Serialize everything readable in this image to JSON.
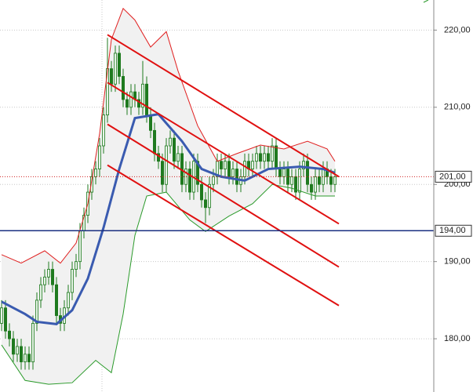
{
  "chart_data": {
    "type": "candlestick",
    "ylim": [
      173.1,
      223.9
    ],
    "xlim": [
      -0.4,
      110.2
    ],
    "yticks": [
      {
        "value": 180,
        "label": "180,00"
      },
      {
        "value": 190,
        "label": "190,00"
      },
      {
        "value": 200,
        "label": "200,00"
      },
      {
        "value": 210,
        "label": "210,00"
      },
      {
        "value": 220,
        "label": "220,00"
      }
    ],
    "grid": true,
    "up_color": "#1f7a1f",
    "down_color": "#1f7a1f",
    "open": [
      182,
      184,
      181,
      180,
      178,
      179,
      177,
      178,
      177,
      182,
      185,
      187,
      188,
      189,
      187,
      183,
      182,
      184,
      186,
      189,
      190,
      194,
      196,
      199,
      201,
      202,
      205,
      209,
      215,
      213,
      217,
      214,
      211,
      210,
      212,
      211,
      210,
      213,
      209,
      207,
      204,
      203,
      200,
      205,
      206,
      203,
      204,
      200,
      202,
      199,
      203,
      200,
      198,
      197,
      200,
      201,
      203,
      202,
      203,
      201,
      202,
      200,
      201,
      203,
      202,
      203,
      204,
      203,
      204,
      203,
      205,
      202,
      201,
      202,
      200,
      201,
      199,
      202,
      203,
      200,
      199,
      201,
      200,
      202,
      201,
      200
    ],
    "high": [
      185,
      185,
      182,
      181,
      180,
      180,
      179,
      179,
      183,
      186,
      188,
      189,
      190,
      190,
      188,
      184,
      185,
      187,
      190,
      191,
      195,
      197,
      200,
      202,
      203,
      206,
      210,
      219,
      216,
      218,
      218,
      215,
      212,
      213,
      213,
      212,
      216,
      214,
      210,
      208,
      205,
      204,
      206,
      207,
      207,
      205,
      205,
      203,
      203,
      204,
      204,
      201,
      199,
      201,
      202,
      204,
      204,
      204,
      204,
      203,
      203,
      202,
      204,
      204,
      204,
      205,
      205,
      205,
      205,
      206,
      206,
      203,
      203,
      203,
      202,
      202,
      203,
      204,
      204,
      201,
      202,
      202,
      203,
      203,
      202,
      202
    ],
    "low": [
      181,
      180,
      179,
      177,
      177,
      176,
      176,
      176,
      176,
      181,
      184,
      186,
      187,
      186,
      182,
      181,
      181,
      183,
      185,
      188,
      189,
      193,
      195,
      198,
      200,
      201,
      204,
      208,
      212,
      212,
      213,
      210,
      209,
      209,
      210,
      209,
      209,
      208,
      206,
      203,
      202,
      199,
      199,
      204,
      202,
      202,
      199,
      199,
      198,
      198,
      199,
      197,
      195,
      196,
      199,
      200,
      201,
      201,
      200,
      200,
      199,
      199,
      200,
      201,
      201,
      202,
      202,
      202,
      202,
      202,
      201,
      200,
      200,
      199,
      199,
      198,
      198,
      201,
      199,
      198,
      198,
      199,
      199,
      200,
      199,
      199
    ],
    "close": [
      184,
      181,
      180,
      178,
      179,
      177,
      178,
      177,
      182,
      185,
      187,
      188,
      189,
      187,
      183,
      182,
      184,
      186,
      189,
      190,
      194,
      196,
      199,
      201,
      202,
      205,
      209,
      215,
      213,
      217,
      214,
      211,
      210,
      212,
      211,
      210,
      213,
      209,
      207,
      204,
      203,
      200,
      205,
      206,
      203,
      204,
      200,
      202,
      199,
      203,
      200,
      198,
      197,
      200,
      201,
      203,
      202,
      203,
      201,
      202,
      200,
      201,
      203,
      202,
      203,
      204,
      203,
      204,
      203,
      205,
      202,
      201,
      202,
      200,
      201,
      199,
      202,
      203,
      200,
      199,
      201,
      200,
      202,
      201,
      200,
      201
    ],
    "bands": [
      {
        "color": "#e02020",
        "x": [
          0,
          5,
          11,
          15,
          19,
          22,
          25,
          28,
          31,
          34,
          38,
          42,
          45,
          50,
          55,
          60,
          66,
          72,
          78,
          83,
          85
        ],
        "values": [
          190.9,
          189.8,
          191.4,
          189.8,
          192.4,
          197.5,
          206.6,
          218.8,
          222.8,
          221.3,
          217.8,
          219.8,
          214.7,
          207.6,
          203,
          204,
          205.1,
          204.6,
          205.6,
          204.6,
          203
        ]
      },
      {
        "color": "#3a5bb0",
        "width": 3,
        "x": [
          0,
          6,
          9,
          14,
          18,
          22,
          26,
          30,
          34,
          40,
          46,
          51,
          56,
          62,
          68,
          76,
          82,
          85
        ],
        "values": [
          184.8,
          183.2,
          182.2,
          181.9,
          183.7,
          187.8,
          194.4,
          202,
          208.6,
          209.1,
          205.6,
          202,
          201,
          200.5,
          202,
          202.3,
          202,
          201.5
        ]
      },
      {
        "color": "#2a9a2a",
        "x": [
          0,
          6,
          12,
          18,
          24,
          28,
          31,
          34,
          37,
          42,
          48,
          52,
          58,
          64,
          69,
          74,
          80,
          85
        ],
        "values": [
          179.2,
          174.6,
          174.1,
          174.3,
          177.2,
          175.6,
          183.2,
          193.4,
          198.5,
          199,
          195.4,
          193.9,
          195.9,
          197.5,
          200,
          199.5,
          198.5,
          198.5
        ]
      }
    ],
    "band_fill": "#f1f1f1",
    "channels": [
      {
        "color": "#e01010",
        "x": [
          27,
          86
        ],
        "values": [
          219.4,
          201.0
        ]
      },
      {
        "color": "#e01010",
        "x": [
          27,
          86
        ],
        "values": [
          213.2,
          194.9
        ]
      },
      {
        "color": "#e01010",
        "x": [
          27,
          86
        ],
        "values": [
          207.8,
          189.3
        ]
      },
      {
        "color": "#e01010",
        "x": [
          27,
          86
        ],
        "values": [
          202.5,
          184.3
        ]
      }
    ],
    "hlines": [
      {
        "value": 201,
        "label": "201,00",
        "color": "#d02020",
        "dashed": true
      },
      {
        "value": 194,
        "label": "194,00",
        "color": "#1a2f80",
        "dashed": false
      }
    ]
  }
}
